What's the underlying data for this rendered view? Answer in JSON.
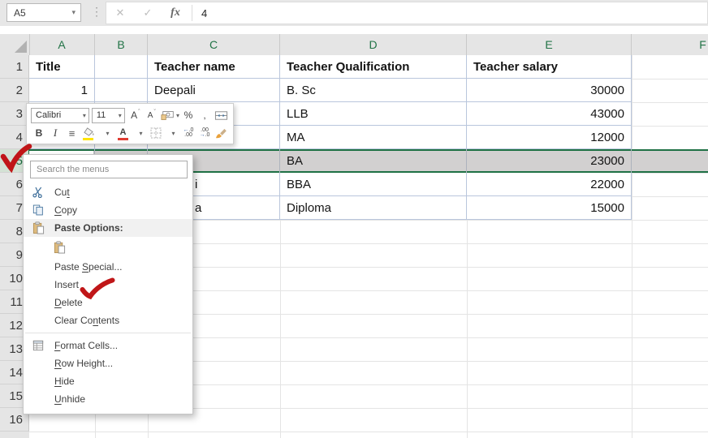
{
  "formula_bar": {
    "name_box": "A5",
    "cancel_glyph": "✕",
    "enter_glyph": "✓",
    "fx_label": "fx",
    "value": "4"
  },
  "columns": [
    "A",
    "B",
    "C",
    "D",
    "E",
    "F"
  ],
  "row_numbers": [
    1,
    2,
    3,
    4,
    5,
    6,
    7,
    8,
    9,
    10,
    11,
    12,
    13,
    14,
    15,
    16
  ],
  "selection": {
    "active_cell": "A5",
    "selected_row": 5
  },
  "cells": [
    {
      "row": 1,
      "col": "A",
      "text": "Title",
      "bold": true
    },
    {
      "row": 1,
      "col": "C",
      "text": "Teacher name",
      "bold": true
    },
    {
      "row": 1,
      "col": "D",
      "text": "Teacher Qualification",
      "bold": true
    },
    {
      "row": 1,
      "col": "E",
      "text": "Teacher salary",
      "bold": true
    },
    {
      "row": 2,
      "col": "A",
      "text": "1",
      "align": "right"
    },
    {
      "row": 2,
      "col": "C",
      "text": "Deepali"
    },
    {
      "row": 2,
      "col": "D",
      "text": "B. Sc"
    },
    {
      "row": 2,
      "col": "E",
      "text": "30000",
      "align": "right"
    },
    {
      "row": 3,
      "col": "D",
      "text": "LLB"
    },
    {
      "row": 3,
      "col": "E",
      "text": "43000",
      "align": "right"
    },
    {
      "row": 4,
      "col": "D",
      "text": "MA"
    },
    {
      "row": 4,
      "col": "E",
      "text": "12000",
      "align": "right"
    },
    {
      "row": 5,
      "col": "D",
      "text": "BA"
    },
    {
      "row": 5,
      "col": "E",
      "text": "23000",
      "align": "right"
    },
    {
      "row": 6,
      "col": "C",
      "text": "i",
      "partial": true
    },
    {
      "row": 6,
      "col": "D",
      "text": "BBA"
    },
    {
      "row": 6,
      "col": "E",
      "text": "22000",
      "align": "right"
    },
    {
      "row": 7,
      "col": "C",
      "text": "a",
      "partial": true
    },
    {
      "row": 7,
      "col": "D",
      "text": "Diploma"
    },
    {
      "row": 7,
      "col": "E",
      "text": "15000",
      "align": "right"
    }
  ],
  "mini_toolbar": {
    "font_name": "Calibri",
    "font_size": "11",
    "bold_label": "B",
    "italic_label": "I",
    "align_glyph": "≡",
    "percent_label": "%",
    "comma_label": ","
  },
  "context_menu": {
    "search_placeholder": "Search the menus",
    "items": [
      {
        "label": "Cut",
        "icon": "scissors",
        "u": 2
      },
      {
        "label": "Copy",
        "icon": "copy",
        "u": 0
      },
      {
        "label": "Paste Options:",
        "icon": "clipboard",
        "type": "section_label"
      },
      {
        "type": "paste_thumbnail",
        "icon": "clipboard"
      },
      {
        "label": "Paste Special...",
        "u": 6
      },
      {
        "label": "Insert",
        "annotation": "red-check"
      },
      {
        "label": "Delete",
        "u": 0
      },
      {
        "label": "Clear Contents",
        "u": 8
      },
      {
        "type": "separator"
      },
      {
        "label": "Format Cells...",
        "icon": "format-cells",
        "u": 0
      },
      {
        "label": "Row Height...",
        "u": 0
      },
      {
        "label": "Hide",
        "u": 0
      },
      {
        "label": "Unhide",
        "u": 0
      }
    ]
  },
  "colors": {
    "excel_green": "#1f7145",
    "selected_row_fill": "#d2d0d0",
    "table_border": "#b9c6dc",
    "annotation_red": "#c01618"
  }
}
